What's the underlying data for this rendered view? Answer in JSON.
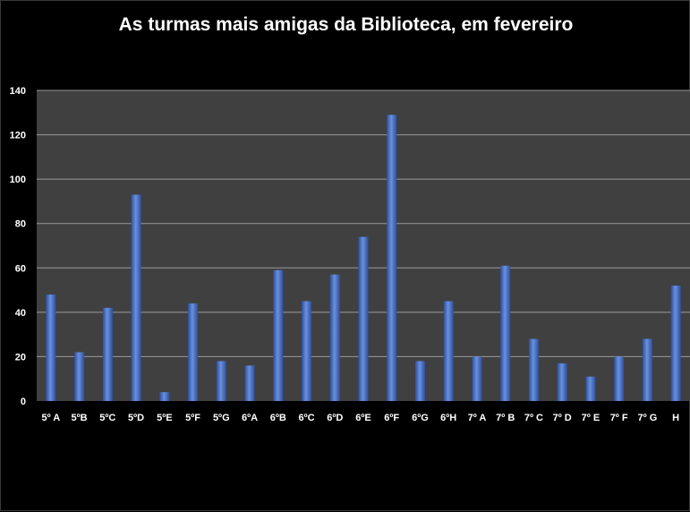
{
  "chart_data": {
    "type": "bar",
    "title": "As turmas mais amigas da Biblioteca, em fevereiro",
    "xlabel": "",
    "ylabel": "",
    "ylim": [
      0,
      140
    ],
    "yticks": [
      "0",
      "20",
      "40",
      "60",
      "80",
      "100",
      "120",
      "140"
    ],
    "grid": true,
    "legend": "none",
    "categories": [
      "5º A",
      "5ºB",
      "5ºC",
      "5ºD",
      "5ºE",
      "5ºF",
      "5ºG",
      "6ºA",
      "6ºB",
      "6ºC",
      "6ºD",
      "6ºE",
      "6ºF",
      "6ºG",
      "6ºH",
      "7º A",
      "7º B",
      "7º C",
      "7º D",
      "7º E",
      "7º F",
      "7º G",
      "H"
    ],
    "values": [
      48,
      22,
      42,
      93,
      4,
      44,
      18,
      16,
      59,
      45,
      57,
      74,
      129,
      18,
      45,
      20,
      61,
      28,
      17,
      11,
      20,
      28,
      52
    ],
    "colors": {
      "background": "#000000",
      "plot_area": "#404040",
      "gridline": "#9a9a9a",
      "bar_light": "#6a90de",
      "bar_dark": "#2d4f9c",
      "text": "#ffffff"
    }
  }
}
